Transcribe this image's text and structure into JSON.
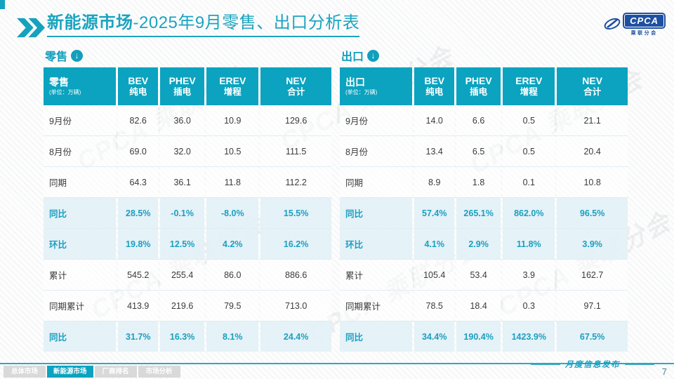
{
  "title": {
    "emphasis": "新能源市场",
    "suffix": "-2025年9月零售、出口分析表"
  },
  "logo": {
    "name": "CPCA",
    "subtitle": "乘联分会"
  },
  "watermark": "CPCA 乘联分会",
  "tables": [
    {
      "section_label": "零售",
      "corner_label": "零售",
      "unit": "(单位：万辆)",
      "columns": [
        {
          "en": "BEV",
          "cn": "纯电"
        },
        {
          "en": "PHEV",
          "cn": "插电"
        },
        {
          "en": "EREV",
          "cn": "增程"
        },
        {
          "en": "NEV",
          "cn": "合计"
        }
      ],
      "rows": [
        {
          "label": "9月份",
          "values": [
            "82.6",
            "36.0",
            "10.9",
            "129.6"
          ],
          "highlight": false
        },
        {
          "label": "8月份",
          "values": [
            "69.0",
            "32.0",
            "10.5",
            "111.5"
          ],
          "highlight": false
        },
        {
          "label": "同期",
          "values": [
            "64.3",
            "36.1",
            "11.8",
            "112.2"
          ],
          "highlight": false
        },
        {
          "label": "同比",
          "values": [
            "28.5%",
            "-0.1%",
            "-8.0%",
            "15.5%"
          ],
          "highlight": true
        },
        {
          "label": "环比",
          "values": [
            "19.8%",
            "12.5%",
            "4.2%",
            "16.2%"
          ],
          "highlight": true
        },
        {
          "label": "累计",
          "values": [
            "545.2",
            "255.4",
            "86.0",
            "886.6"
          ],
          "highlight": false
        },
        {
          "label": "同期累计",
          "values": [
            "413.9",
            "219.6",
            "79.5",
            "713.0"
          ],
          "highlight": false
        },
        {
          "label": "同比",
          "values": [
            "31.7%",
            "16.3%",
            "8.1%",
            "24.4%"
          ],
          "highlight": true
        }
      ]
    },
    {
      "section_label": "出口",
      "corner_label": "出口",
      "unit": "(单位：万辆)",
      "columns": [
        {
          "en": "BEV",
          "cn": "纯电"
        },
        {
          "en": "PHEV",
          "cn": "插电"
        },
        {
          "en": "EREV",
          "cn": "增程"
        },
        {
          "en": "NEV",
          "cn": "合计"
        }
      ],
      "rows": [
        {
          "label": "9月份",
          "values": [
            "14.0",
            "6.6",
            "0.5",
            "21.1"
          ],
          "highlight": false
        },
        {
          "label": "8月份",
          "values": [
            "13.4",
            "6.5",
            "0.5",
            "20.4"
          ],
          "highlight": false
        },
        {
          "label": "同期",
          "values": [
            "8.9",
            "1.8",
            "0.1",
            "10.8"
          ],
          "highlight": false
        },
        {
          "label": "同比",
          "values": [
            "57.4%",
            "265.1%",
            "862.0%",
            "96.5%"
          ],
          "highlight": true
        },
        {
          "label": "环比",
          "values": [
            "4.1%",
            "2.9%",
            "11.8%",
            "3.9%"
          ],
          "highlight": true
        },
        {
          "label": "累计",
          "values": [
            "105.4",
            "53.4",
            "3.9",
            "162.7"
          ],
          "highlight": false
        },
        {
          "label": "同期累计",
          "values": [
            "78.5",
            "18.4",
            "0.3",
            "97.1"
          ],
          "highlight": false
        },
        {
          "label": "同比",
          "values": [
            "34.4%",
            "190.4%",
            "1423.9%",
            "67.5%"
          ],
          "highlight": true
        }
      ]
    }
  ],
  "footer": {
    "tabs": [
      {
        "label": "总体市场",
        "active": false
      },
      {
        "label": "新能源市场",
        "active": true
      },
      {
        "label": "厂商排名",
        "active": false
      },
      {
        "label": "市场分析",
        "active": false
      }
    ],
    "signature": "月度信息发布",
    "page": "7"
  },
  "icons": {
    "down_arrow": "↓"
  }
}
